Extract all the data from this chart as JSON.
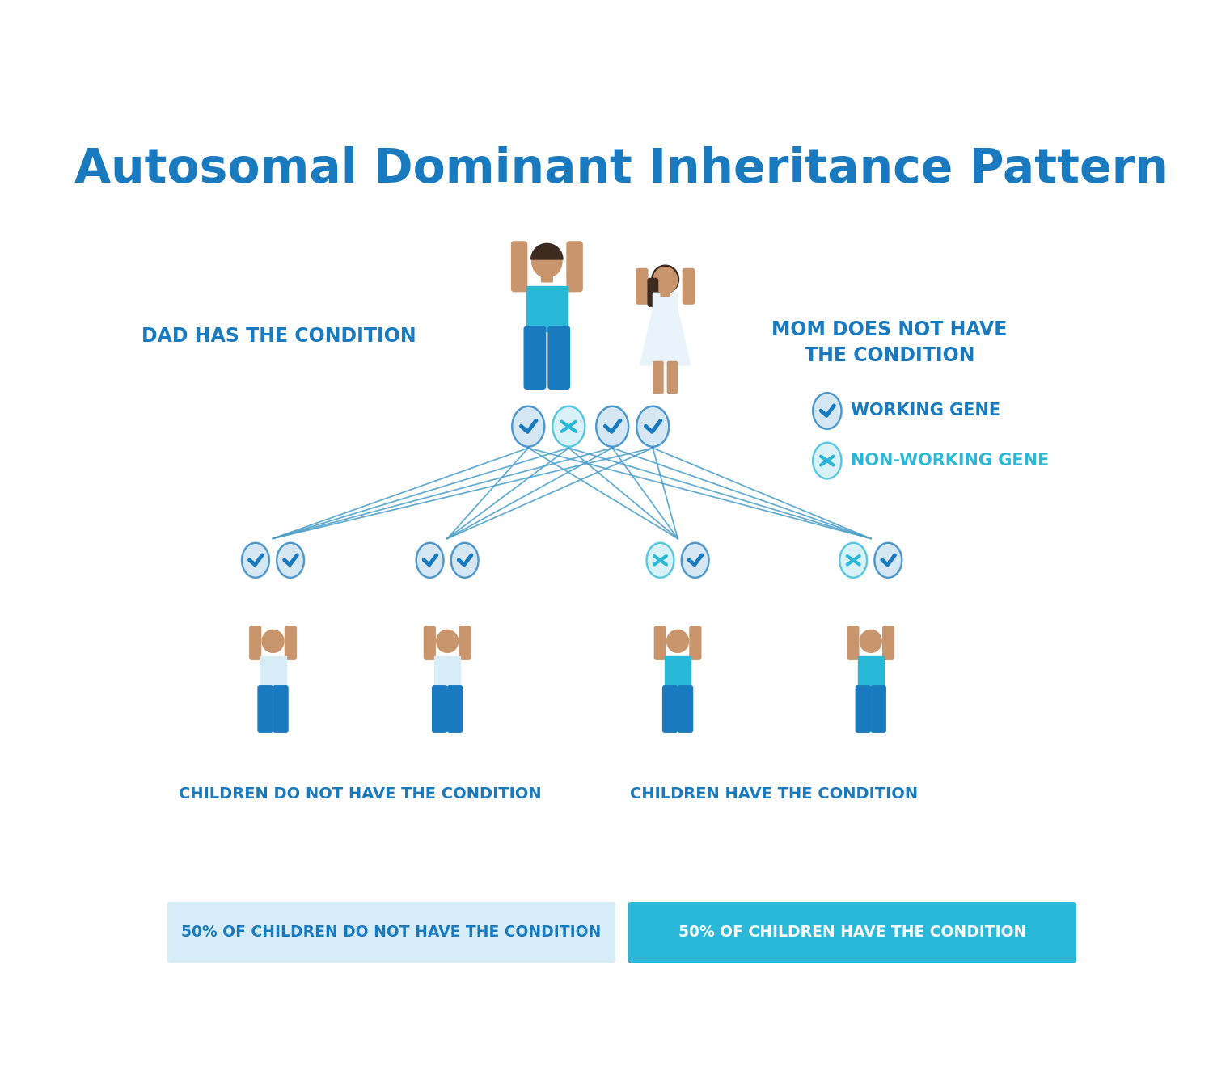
{
  "title": "Autosomal Dominant Inheritance Pattern",
  "title_color": "#1a7abf",
  "title_fontsize": 42,
  "bg_color": "#ffffff",
  "dad_label": "DAD HAS THE CONDITION",
  "mom_label": "MOM DOES NOT HAVE\nTHE CONDITION",
  "label_color": "#1a7abf",
  "label_fontsize": 17,
  "children_left_label": "CHILDREN DO NOT HAVE THE CONDITION",
  "children_right_label": "CHILDREN HAVE THE CONDITION",
  "bottom_left_text": "50% OF CHILDREN DO NOT HAVE THE CONDITION",
  "bottom_right_text": "50% OF CHILDREN HAVE THE CONDITION",
  "bottom_left_bg": "#d6edf8",
  "bottom_right_bg": "#29b8d8",
  "working_gene_label": "WORKING GENE",
  "nonworking_gene_label": "NON-WORKING GENE",
  "blue_dark": "#1a7abf",
  "blue_medium": "#29b8d8",
  "blue_light": "#cce8f4",
  "skin_color": "#c8956c",
  "hair_color": "#3d2b1f",
  "dad_shirt": "#29b8d8",
  "dad_pants": "#1a7abf",
  "mom_dress": "#e8f4fa",
  "mom_legs": "#c8956c",
  "child_affected_shirt": "#29b8d8",
  "child_affected_pants": "#1a7abf",
  "child_unaffected_shirt": "#d6edf8",
  "child_unaffected_pants": "#1a7abf",
  "line_color": "#4a9fc8",
  "line_alpha": 0.85,
  "line_width": 1.3
}
